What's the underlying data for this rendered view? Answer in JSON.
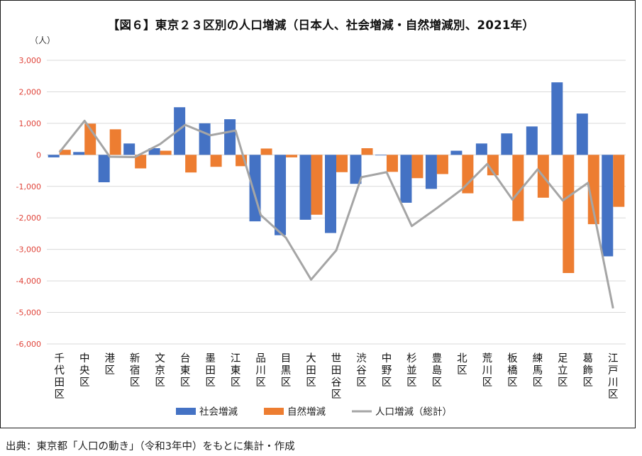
{
  "chart_data": {
    "type": "bar",
    "title": "【図６】東京２３区別の人口増減（日本人、社会増減・自然増減別、2021年）",
    "ylabel": "（人）",
    "xlabel": "",
    "ylim": [
      -6000,
      3000
    ],
    "yticks": [
      "3,000",
      "2,000",
      "1,000",
      "0",
      "-1,000",
      "-2,000",
      "-3,000",
      "-4,000",
      "-5,000",
      "-6,000"
    ],
    "ytick_values": [
      3000,
      2000,
      1000,
      0,
      -1000,
      -2000,
      -3000,
      -4000,
      -5000,
      -6000
    ],
    "grid": true,
    "legend": "bottom",
    "categories": [
      "千代田区",
      "中央区",
      "港区",
      "新宿区",
      "文京区",
      "台東区",
      "墨田区",
      "江東区",
      "品川区",
      "目黒区",
      "大田区",
      "世田谷区",
      "渋谷区",
      "中野区",
      "杉並区",
      "豊島区",
      "北区",
      "荒川区",
      "板橋区",
      "練馬区",
      "足立区",
      "葛飾区",
      "江戸川区"
    ],
    "series": [
      {
        "name": "社会増減",
        "type": "bar",
        "color": "#4472C4",
        "values": [
          -80,
          90,
          -870,
          360,
          210,
          1510,
          1000,
          1130,
          -2110,
          -2550,
          -2060,
          -2480,
          -920,
          -10,
          -1520,
          -1080,
          130,
          360,
          680,
          900,
          2300,
          1310,
          -3220
        ]
      },
      {
        "name": "自然増減",
        "type": "bar",
        "color": "#ED7D31",
        "values": [
          160,
          990,
          810,
          -430,
          130,
          -560,
          -380,
          -360,
          200,
          -80,
          -1900,
          -550,
          210,
          -540,
          -740,
          -610,
          -1220,
          -650,
          -2100,
          -1360,
          -3750,
          -2200,
          -1650
        ]
      },
      {
        "name": "人口増減（総計）",
        "type": "line",
        "color": "#A5A5A5",
        "values": [
          80,
          1080,
          -60,
          -70,
          340,
          950,
          620,
          770,
          -1910,
          -2630,
          -3960,
          -3030,
          -710,
          -550,
          -2260,
          -1690,
          -1090,
          -290,
          -1420,
          -460,
          -1450,
          -890,
          -4870
        ]
      }
    ]
  },
  "source_note": "出典：東京都「人口の動き」（令和3年中）をもとに集計・作成"
}
